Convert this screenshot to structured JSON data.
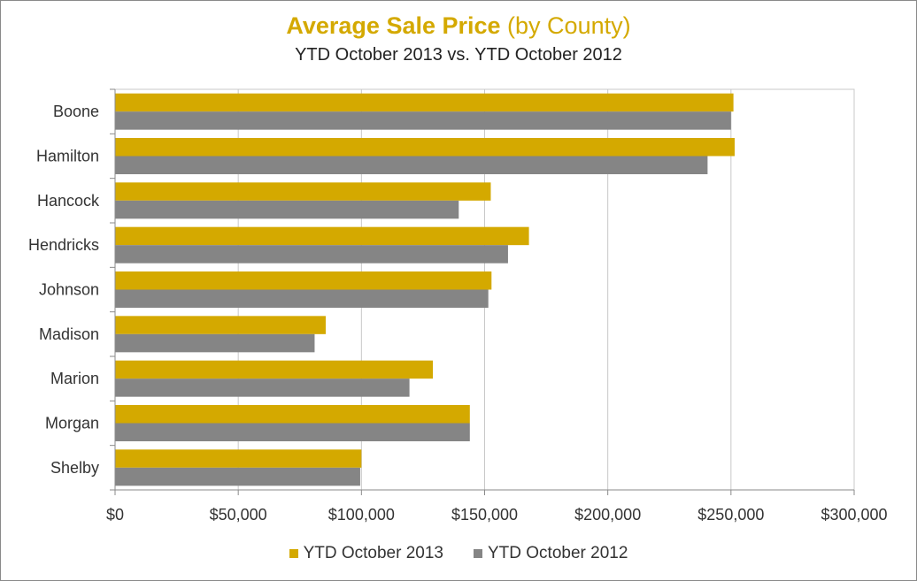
{
  "chart_data": {
    "type": "bar",
    "orientation": "horizontal",
    "title_main": "Average Sale Price",
    "title_suffix": "(by County)",
    "subtitle": "YTD October 2013 vs. YTD October 2012",
    "categories": [
      "Boone",
      "Hamilton",
      "Hancock",
      "Hendricks",
      "Johnson",
      "Madison",
      "Marion",
      "Morgan",
      "Shelby"
    ],
    "series": [
      {
        "name": "YTD October 2013",
        "color": "#d4a900",
        "values": [
          251000,
          251500,
          152500,
          168000,
          152800,
          85500,
          129000,
          144000,
          100000
        ]
      },
      {
        "name": "YTD October 2012",
        "color": "#858585",
        "values": [
          250000,
          240500,
          139500,
          159500,
          151500,
          81000,
          119500,
          144000,
          99500
        ]
      }
    ],
    "xlim": [
      0,
      300000
    ],
    "xticks": [
      0,
      50000,
      100000,
      150000,
      200000,
      250000,
      300000
    ],
    "xtick_labels": [
      "$0",
      "$50,000",
      "$100,000",
      "$150,000",
      "$200,000",
      "$250,000",
      "$300,000"
    ],
    "grid": "vertical",
    "legend_position": "bottom",
    "title_color": "#d4a900"
  }
}
